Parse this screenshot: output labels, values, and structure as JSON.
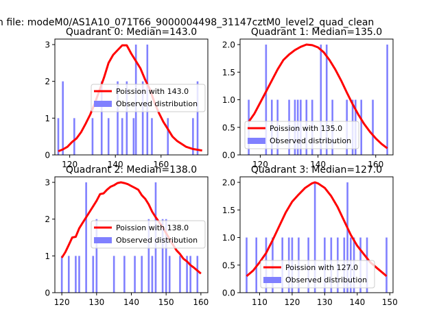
{
  "figure": {
    "suptitle": "h file: modeM0/AS1A10_071T66_9000004498_31147cztM0_level2_quad_clean"
  },
  "chart_data": [
    {
      "type": "bar",
      "title": "Quadrant 0: Median=143.0",
      "xlim": [
        113.5,
        180.5
      ],
      "ylim": [
        0,
        3.15
      ],
      "xticks": [
        120,
        140,
        160
      ],
      "yticks": [
        0,
        1,
        2,
        3
      ],
      "legend": {
        "placement": "center-right",
        "entries": [
          {
            "label": "Poission with 143.0",
            "kind": "line",
            "color": "#ff0000"
          },
          {
            "label": "Observed distribution",
            "kind": "bar",
            "color": "#8080ff"
          }
        ]
      },
      "observed": {
        "x": [
          115,
          117,
          122,
          130,
          134,
          137,
          141,
          143,
          145,
          148,
          149,
          152,
          154,
          156,
          163,
          174,
          176
        ],
        "counts": [
          1,
          2,
          1,
          1,
          2,
          1,
          2,
          1,
          2,
          1,
          3,
          2,
          3,
          1,
          1,
          1,
          2
        ]
      },
      "poisson_fit": {
        "x": [
          115,
          117,
          119,
          121,
          123,
          125,
          127,
          129,
          131,
          133,
          135,
          137,
          139,
          141,
          143,
          145,
          147,
          149,
          151,
          153,
          155,
          157,
          159,
          161,
          163,
          165,
          167,
          169,
          171,
          174,
          176,
          178
        ],
        "y": [
          0.1,
          0.15,
          0.22,
          0.35,
          0.45,
          0.62,
          0.85,
          1.1,
          1.4,
          1.75,
          2.1,
          2.5,
          2.72,
          2.85,
          2.98,
          2.98,
          2.75,
          2.55,
          2.35,
          2.05,
          1.8,
          1.45,
          1.15,
          0.9,
          0.7,
          0.5,
          0.38,
          0.3,
          0.22,
          0.16,
          0.14,
          0.12
        ]
      }
    },
    {
      "type": "bar",
      "title": "Quadrant 1: Median=135.0",
      "xlim": [
        113,
        166
      ],
      "ylim": [
        0,
        2.1
      ],
      "xticks": [
        120,
        140,
        160
      ],
      "yticks": [
        0,
        0.5,
        1.0,
        1.5,
        2.0
      ],
      "legend": {
        "placement": "bottom-right",
        "entries": [
          {
            "label": "Poission with 135.0",
            "kind": "line",
            "color": "#ff0000"
          },
          {
            "label": "Observed distribution",
            "kind": "bar",
            "color": "#8080ff"
          }
        ]
      },
      "observed": {
        "x": [
          116,
          122,
          124,
          126,
          130,
          132,
          133,
          134,
          136,
          138,
          141,
          143,
          145,
          150,
          152,
          153,
          155,
          159,
          164
        ],
        "counts": [
          1,
          2,
          1,
          1,
          1,
          1,
          1,
          1,
          1,
          1,
          2,
          2,
          1,
          1,
          1,
          1,
          1,
          1,
          2
        ]
      },
      "poisson_fit": {
        "x": [
          116,
          118,
          120,
          122,
          124,
          126,
          128,
          130,
          132,
          134,
          136,
          138,
          140,
          142,
          144,
          146,
          148,
          150,
          152,
          154,
          156,
          158,
          160,
          162,
          164
        ],
        "y": [
          0.6,
          0.75,
          0.95,
          1.15,
          1.35,
          1.55,
          1.72,
          1.82,
          1.9,
          1.96,
          2.0,
          1.99,
          1.95,
          1.86,
          1.72,
          1.55,
          1.35,
          1.13,
          0.92,
          0.73,
          0.56,
          0.42,
          0.3,
          0.2,
          0.12
        ]
      }
    },
    {
      "type": "bar",
      "title": "Quadrant 2: Median=138.0",
      "xlim": [
        118,
        162
      ],
      "ylim": [
        0,
        3.15
      ],
      "xticks": [
        120,
        130,
        140,
        150,
        160
      ],
      "yticks": [
        0,
        1,
        2,
        3
      ],
      "legend": {
        "placement": "center-right",
        "entries": [
          {
            "label": "Poission with 138.0",
            "kind": "line",
            "color": "#ff0000"
          },
          {
            "label": "Observed distribution",
            "kind": "bar",
            "color": "#8080ff"
          }
        ]
      },
      "observed": {
        "x": [
          120,
          122,
          124,
          125,
          127,
          129,
          130,
          135,
          138,
          141,
          143,
          145,
          146,
          147,
          149,
          150,
          151,
          154,
          156,
          157,
          159
        ],
        "counts": [
          1,
          1,
          1,
          1,
          3,
          1,
          2,
          1,
          1,
          1,
          1,
          2,
          1,
          3,
          2,
          2,
          1,
          1,
          1,
          1,
          1
        ]
      },
      "poisson_fit": {
        "x": [
          120,
          121,
          122,
          123,
          124,
          125,
          126,
          127,
          128,
          129,
          130,
          131,
          132,
          133,
          134,
          135,
          136,
          137,
          138,
          139,
          140,
          141,
          142,
          143,
          144,
          145,
          146,
          147,
          148,
          149,
          150,
          151,
          152,
          153,
          154,
          155,
          156,
          157,
          158,
          159,
          160
        ],
        "y": [
          0.95,
          1.1,
          1.3,
          1.5,
          1.52,
          1.75,
          1.9,
          2.05,
          2.2,
          2.35,
          2.5,
          2.68,
          2.7,
          2.8,
          2.88,
          2.92,
          2.98,
          3.0,
          2.98,
          2.95,
          2.9,
          2.85,
          2.8,
          2.65,
          2.55,
          2.4,
          2.2,
          2.05,
          1.92,
          1.78,
          1.62,
          1.45,
          1.3,
          1.15,
          1.05,
          0.92,
          0.85,
          0.75,
          0.68,
          0.6,
          0.52
        ]
      }
    },
    {
      "type": "bar",
      "title": "Quadrant 3: Median=127.0",
      "xlim": [
        104,
        151
      ],
      "ylim": [
        0,
        2.1
      ],
      "xticks": [
        110,
        120,
        130,
        140,
        150
      ],
      "yticks": [
        0,
        0.5,
        1.0,
        1.5,
        2.0
      ],
      "legend": {
        "placement": "bottom-right",
        "entries": [
          {
            "label": "Poission with 127.0",
            "kind": "line",
            "color": "#ff0000"
          },
          {
            "label": "Observed distribution",
            "kind": "bar",
            "color": "#8080ff"
          }
        ]
      },
      "observed": {
        "x": [
          106,
          109,
          112,
          114,
          117,
          119,
          120,
          122,
          125,
          127,
          130,
          132,
          134,
          136,
          137,
          138,
          139,
          141,
          143,
          149
        ],
        "counts": [
          1,
          1,
          1,
          1,
          1,
          1,
          1,
          1,
          1,
          2,
          1,
          1,
          1,
          1,
          2,
          1,
          1,
          1,
          1,
          1
        ]
      },
      "poisson_fit": {
        "x": [
          106,
          108,
          110,
          112,
          114,
          116,
          118,
          120,
          122,
          124,
          126,
          127,
          128,
          130,
          132,
          134,
          136,
          138,
          140,
          142,
          144,
          146,
          148,
          149
        ],
        "y": [
          0.3,
          0.4,
          0.55,
          0.72,
          0.95,
          1.2,
          1.45,
          1.65,
          1.78,
          1.9,
          1.98,
          2.0,
          1.98,
          1.9,
          1.75,
          1.55,
          1.3,
          1.05,
          0.85,
          0.7,
          0.55,
          0.45,
          0.35,
          0.3
        ]
      }
    }
  ]
}
